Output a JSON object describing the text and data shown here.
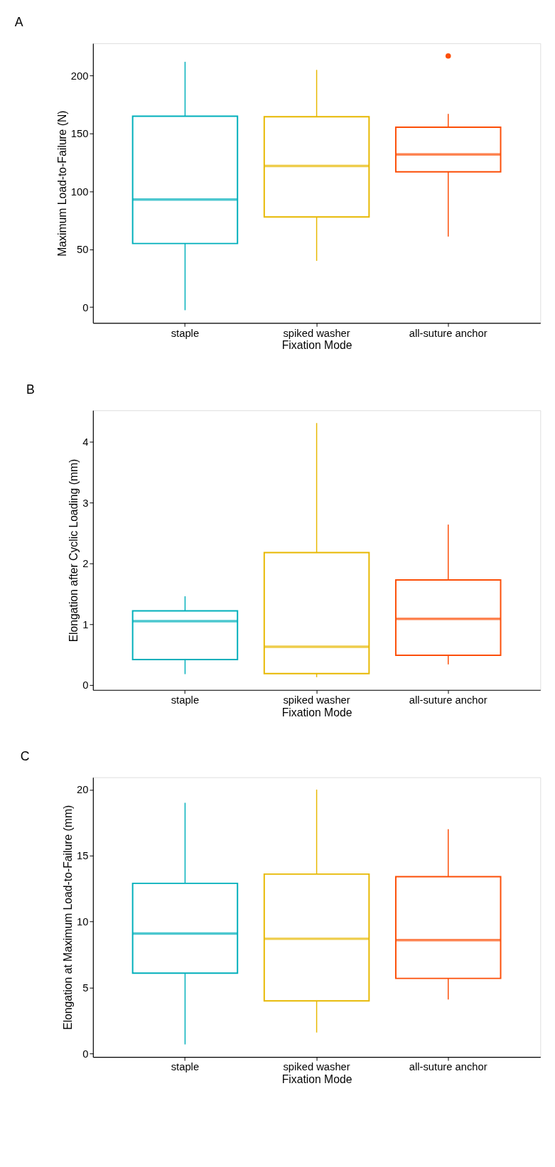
{
  "chart_data": [
    {
      "type": "box",
      "title": "A",
      "xlabel": "Fixation Mode",
      "ylabel": "Maximum Load-to-Failure (N)",
      "categories": [
        "staple",
        "spiked washer",
        "all-suture anchor"
      ],
      "colors": [
        "#00afbb",
        "#e7b800",
        "#fc4e07"
      ],
      "boxes": [
        {
          "low": -2.6,
          "q1": 55,
          "median": 93,
          "q3": 165,
          "high": 212
        },
        {
          "low": 40,
          "q1": 78,
          "median": 122,
          "q3": 164.5,
          "high": 205
        },
        {
          "low": 61,
          "q1": 117,
          "median": 132,
          "q3": 155.5,
          "high": 167,
          "outliers": [
            217
          ]
        }
      ],
      "ylim": [
        -13.6,
        228
      ],
      "yticks": [
        0,
        50,
        100,
        150,
        200
      ],
      "grid": false,
      "legend": false
    },
    {
      "type": "box",
      "title": "B",
      "xlabel": "Fixation Mode",
      "ylabel": "Elongation after Cyclic Loading (mm)",
      "categories": [
        "staple",
        "spiked washer",
        "all-suture anchor"
      ],
      "colors": [
        "#00afbb",
        "#e7b800",
        "#fc4e07"
      ],
      "boxes": [
        {
          "low": 0.18,
          "q1": 0.42,
          "median": 1.05,
          "q3": 1.22,
          "high": 1.46
        },
        {
          "low": 0.13,
          "q1": 0.19,
          "median": 0.63,
          "q3": 2.18,
          "high": 4.31
        },
        {
          "low": 0.34,
          "q1": 0.49,
          "median": 1.09,
          "q3": 1.73,
          "high": 2.64
        }
      ],
      "ylim": [
        -0.08,
        4.52
      ],
      "yticks": [
        0,
        1,
        2,
        3,
        4
      ],
      "grid": false,
      "legend": false
    },
    {
      "type": "box",
      "title": "C",
      "xlabel": "Fixation Mode",
      "ylabel": "Elongation at Maximum Load-to-Failure (mm)",
      "categories": [
        "staple",
        "spiked washer",
        "all-suture anchor"
      ],
      "colors": [
        "#00afbb",
        "#e7b800",
        "#fc4e07"
      ],
      "boxes": [
        {
          "low": 0.7,
          "q1": 6.1,
          "median": 9.1,
          "q3": 12.9,
          "high": 19.0
        },
        {
          "low": 1.6,
          "q1": 4.0,
          "median": 8.7,
          "q3": 13.6,
          "high": 20.0
        },
        {
          "low": 4.1,
          "q1": 5.7,
          "median": 8.6,
          "q3": 13.4,
          "high": 17.0
        }
      ],
      "ylim": [
        -0.25,
        20.93
      ],
      "yticks": [
        0,
        5,
        10,
        15,
        20
      ],
      "grid": false,
      "legend": false
    }
  ]
}
